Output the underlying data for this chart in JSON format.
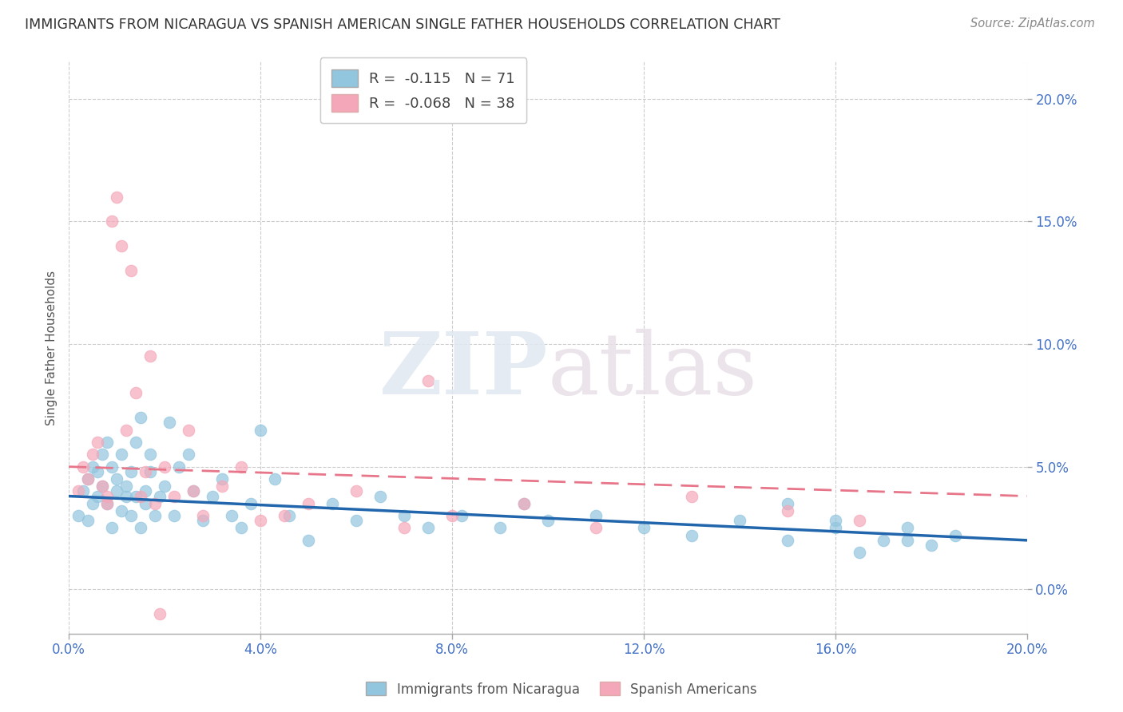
{
  "title": "IMMIGRANTS FROM NICARAGUA VS SPANISH AMERICAN SINGLE FATHER HOUSEHOLDS CORRELATION CHART",
  "source": "Source: ZipAtlas.com",
  "ylabel": "Single Father Households",
  "legend_entries": [
    {
      "label": "R =  -0.115   N = 71",
      "color": "#92c5de"
    },
    {
      "label": "R =  -0.068   N = 38",
      "color": "#f4a7b9"
    }
  ],
  "legend_labels_bottom": [
    "Immigrants from Nicaragua",
    "Spanish Americans"
  ],
  "color_blue": "#92c5de",
  "color_pink": "#f4a7b9",
  "color_blue_line": "#2166ac",
  "color_pink_line": "#e8768a",
  "xlim": [
    0.0,
    0.2
  ],
  "ylim": [
    -0.018,
    0.215
  ],
  "xticks": [
    0.0,
    0.04,
    0.08,
    0.12,
    0.16,
    0.2
  ],
  "yticks_right": [
    0.0,
    0.05,
    0.1,
    0.15,
    0.2
  ],
  "blue_scatter_x": [
    0.002,
    0.003,
    0.004,
    0.004,
    0.005,
    0.005,
    0.006,
    0.006,
    0.007,
    0.007,
    0.008,
    0.008,
    0.009,
    0.009,
    0.01,
    0.01,
    0.011,
    0.011,
    0.012,
    0.012,
    0.013,
    0.013,
    0.014,
    0.014,
    0.015,
    0.015,
    0.016,
    0.016,
    0.017,
    0.017,
    0.018,
    0.019,
    0.02,
    0.021,
    0.022,
    0.023,
    0.025,
    0.026,
    0.028,
    0.03,
    0.032,
    0.034,
    0.036,
    0.038,
    0.04,
    0.043,
    0.046,
    0.05,
    0.055,
    0.06,
    0.065,
    0.07,
    0.075,
    0.082,
    0.09,
    0.095,
    0.1,
    0.11,
    0.12,
    0.13,
    0.14,
    0.15,
    0.16,
    0.165,
    0.17,
    0.175,
    0.18,
    0.185,
    0.15,
    0.16,
    0.175
  ],
  "blue_scatter_y": [
    0.03,
    0.04,
    0.028,
    0.045,
    0.035,
    0.05,
    0.038,
    0.048,
    0.042,
    0.055,
    0.035,
    0.06,
    0.025,
    0.05,
    0.04,
    0.045,
    0.032,
    0.055,
    0.038,
    0.042,
    0.048,
    0.03,
    0.06,
    0.038,
    0.025,
    0.07,
    0.035,
    0.04,
    0.048,
    0.055,
    0.03,
    0.038,
    0.042,
    0.068,
    0.03,
    0.05,
    0.055,
    0.04,
    0.028,
    0.038,
    0.045,
    0.03,
    0.025,
    0.035,
    0.065,
    0.045,
    0.03,
    0.02,
    0.035,
    0.028,
    0.038,
    0.03,
    0.025,
    0.03,
    0.025,
    0.035,
    0.028,
    0.03,
    0.025,
    0.022,
    0.028,
    0.02,
    0.025,
    0.015,
    0.02,
    0.025,
    0.018,
    0.022,
    0.035,
    0.028,
    0.02
  ],
  "pink_scatter_x": [
    0.002,
    0.003,
    0.004,
    0.005,
    0.006,
    0.007,
    0.008,
    0.009,
    0.01,
    0.011,
    0.012,
    0.013,
    0.014,
    0.015,
    0.016,
    0.017,
    0.018,
    0.02,
    0.022,
    0.025,
    0.028,
    0.032,
    0.036,
    0.04,
    0.05,
    0.06,
    0.07,
    0.08,
    0.095,
    0.11,
    0.13,
    0.15,
    0.165,
    0.075,
    0.045,
    0.026,
    0.019,
    0.008
  ],
  "pink_scatter_y": [
    0.04,
    0.05,
    0.045,
    0.055,
    0.06,
    0.042,
    0.035,
    0.15,
    0.16,
    0.14,
    0.065,
    0.13,
    0.08,
    0.038,
    0.048,
    0.095,
    0.035,
    0.05,
    0.038,
    0.065,
    0.03,
    0.042,
    0.05,
    0.028,
    0.035,
    0.04,
    0.025,
    0.03,
    0.035,
    0.025,
    0.038,
    0.032,
    0.028,
    0.085,
    0.03,
    0.04,
    -0.01,
    0.038
  ],
  "blue_line_y_start": 0.038,
  "blue_line_y_end": 0.02,
  "pink_line_y_start": 0.05,
  "pink_line_y_end": 0.038,
  "background_color": "#ffffff",
  "grid_color": "#cccccc"
}
